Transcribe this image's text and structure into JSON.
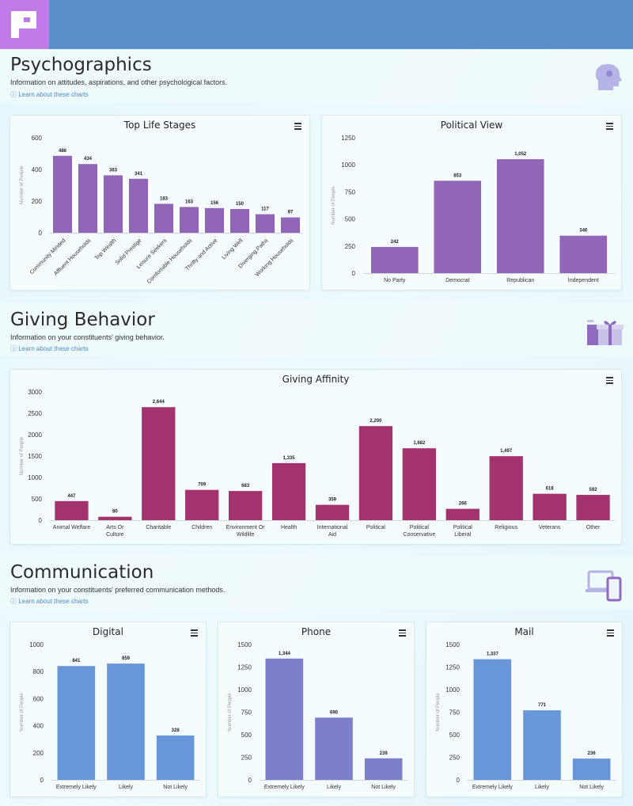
{
  "sections": {
    "psychographics": {
      "title": "Psychographics",
      "description": "Information on attitudes, aspirations, and other psychological factors.",
      "link": "ⓘ Learn about these charts",
      "icon": "head-profile-icon"
    },
    "giving": {
      "title": "Giving Behavior",
      "description": "Information on your constituents' giving behavior.",
      "link": "ⓘ Learn about these charts",
      "icon": "gift-icon"
    },
    "communication": {
      "title": "Communication",
      "description": "Information on your constituents' preferred communication methods.",
      "link": "ⓘ Learn about these charts",
      "icon": "devices-icon"
    }
  },
  "colors": {
    "purple": "#9166b8",
    "magenta": "#a3336e",
    "blue": "#6797d9",
    "violet": "#7e7fca"
  },
  "chart_data": [
    {
      "id": "life",
      "type": "bar",
      "title": "Top Life Stages",
      "ylabel": "Number of People",
      "categories": [
        "Community Minded",
        "Affluent Households",
        "Top Wealth",
        "Solid Prestige",
        "Leisure Seekers",
        "Comfortable Households",
        "Thrifty and Active",
        "Living Well",
        "Diverging Paths",
        "Working Households"
      ],
      "values": [
        486,
        434,
        363,
        341,
        183,
        163,
        156,
        150,
        117,
        97
      ],
      "labels": [
        "486",
        "434",
        "363",
        "341",
        "183",
        "163",
        "156",
        "150",
        "117",
        "97"
      ],
      "ylim": [
        0,
        600
      ],
      "yticks": [
        0,
        200,
        400,
        600
      ],
      "color": "#9166b8"
    },
    {
      "id": "political",
      "type": "bar",
      "title": "Political View",
      "ylabel": "Number of People",
      "categories": [
        "No Party",
        "Democrat",
        "Republican",
        "Independent"
      ],
      "values": [
        242,
        853,
        1052,
        346
      ],
      "labels": [
        "242",
        "853",
        "1,052",
        "346"
      ],
      "ylim": [
        0,
        1250
      ],
      "yticks": [
        0,
        250,
        500,
        750,
        1000,
        1250
      ],
      "color": "#9166b8"
    },
    {
      "id": "giving",
      "type": "bar",
      "title": "Giving Affinity",
      "ylabel": "Number of People",
      "categories": [
        "Animal Welfare",
        "Arts Or Culture",
        "Charitable",
        "Children",
        "Environment Or Wildlife",
        "Health",
        "International Aid",
        "Political",
        "Political Conservative",
        "Political Liberal",
        "Religious",
        "Veterans",
        "Other"
      ],
      "values": [
        447,
        80,
        2644,
        709,
        683,
        1335,
        359,
        2200,
        1682,
        266,
        1497,
        618,
        592
      ],
      "labels": [
        "447",
        "80",
        "2,644",
        "709",
        "683",
        "1,335",
        "359",
        "2,200",
        "1,682",
        "266",
        "1,497",
        "618",
        "592"
      ],
      "ylim": [
        0,
        3000
      ],
      "yticks": [
        0,
        500,
        1000,
        1500,
        2000,
        2500,
        3000
      ],
      "color": "#a3336e"
    },
    {
      "id": "digital",
      "type": "bar",
      "title": "Digital",
      "ylabel": "Number of People",
      "categories": [
        "Extremely Likely",
        "Likely",
        "Not Likely"
      ],
      "values": [
        841,
        859,
        328
      ],
      "labels": [
        "841",
        "859",
        "328"
      ],
      "ylim": [
        0,
        1000
      ],
      "yticks": [
        0,
        200,
        400,
        600,
        800,
        1000
      ],
      "color": "#6797d9"
    },
    {
      "id": "phone",
      "type": "bar",
      "title": "Phone",
      "ylabel": "Number of People",
      "categories": [
        "Extremely Likely",
        "Likely",
        "Not Likely"
      ],
      "values": [
        1344,
        690,
        239
      ],
      "labels": [
        "1,344",
        "690",
        "239"
      ],
      "ylim": [
        0,
        1500
      ],
      "yticks": [
        0,
        250,
        500,
        750,
        1000,
        1250,
        1500
      ],
      "color": "#7e7fca"
    },
    {
      "id": "mail",
      "type": "bar",
      "title": "Mail",
      "ylabel": "Number of People",
      "categories": [
        "Extremely Likely",
        "Likely",
        "Not Likely"
      ],
      "values": [
        1337,
        771,
        236
      ],
      "labels": [
        "1,337",
        "771",
        "236"
      ],
      "ylim": [
        0,
        1500
      ],
      "yticks": [
        0,
        250,
        500,
        750,
        1000,
        1250,
        1500
      ],
      "color": "#6797d9"
    }
  ]
}
